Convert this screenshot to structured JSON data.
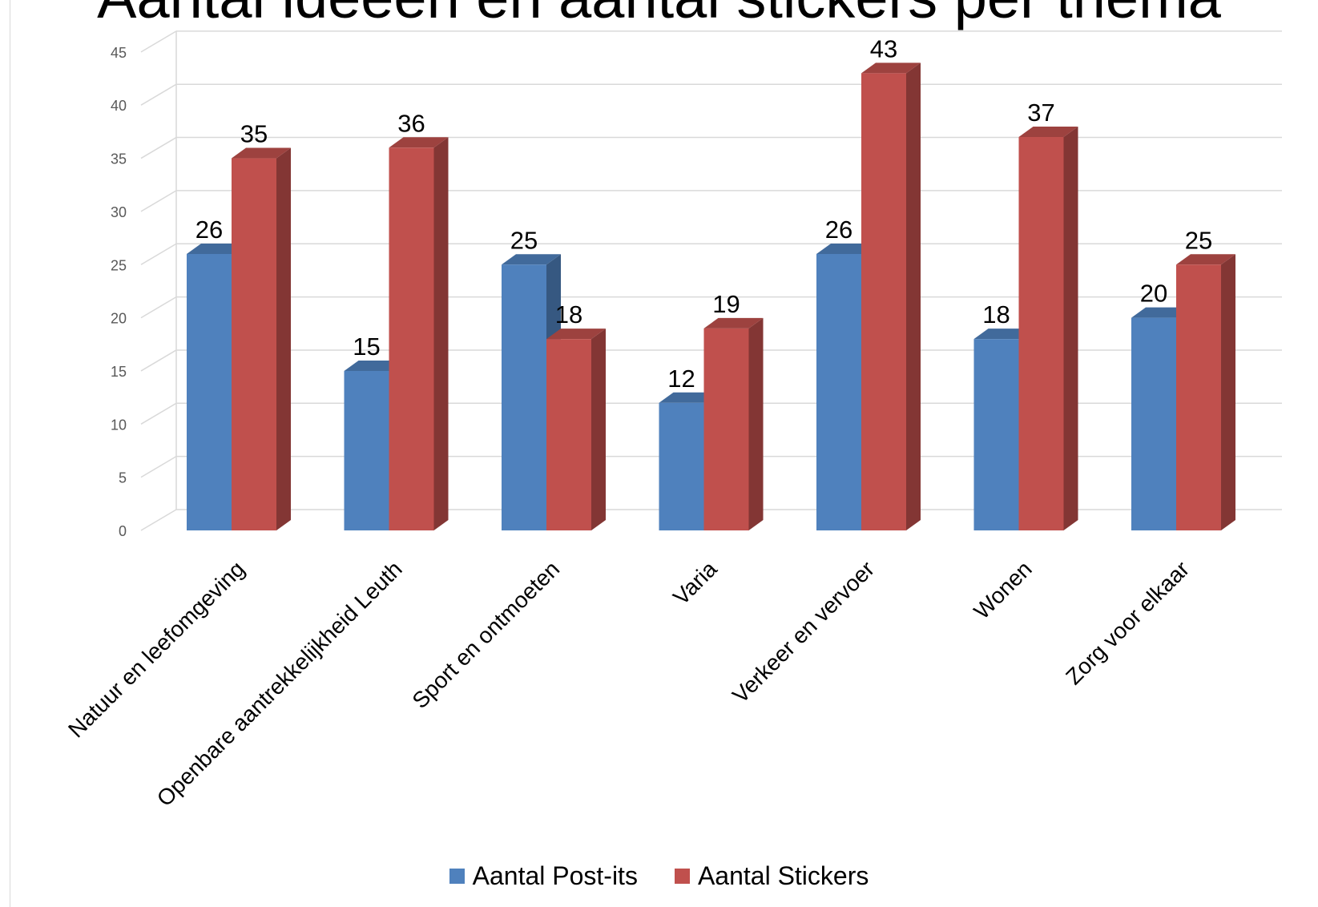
{
  "chart_data": {
    "type": "bar",
    "title": "Aantal ideeën en aantal stickers per thema",
    "categories": [
      "Natuur en leefomgeving",
      "Openbare aantrekkelijkheid Leuth",
      "Sport en ontmoeten",
      "Varia",
      "Verkeer en vervoer",
      "Wonen",
      "Zorg voor elkaar"
    ],
    "series": [
      {
        "name": "Aantal Post-its",
        "color": "#4f81bd",
        "values": [
          26,
          15,
          25,
          12,
          26,
          18,
          20
        ]
      },
      {
        "name": "Aantal Stickers",
        "color": "#c0504d",
        "values": [
          35,
          36,
          18,
          19,
          43,
          37,
          25
        ]
      }
    ],
    "ylim": [
      0,
      45
    ],
    "yticks": [
      0,
      5,
      10,
      15,
      20,
      25,
      30,
      35,
      40,
      45
    ],
    "grid": true,
    "legend_position": "bottom",
    "data_labels": true,
    "style": "3d-clustered-column"
  }
}
